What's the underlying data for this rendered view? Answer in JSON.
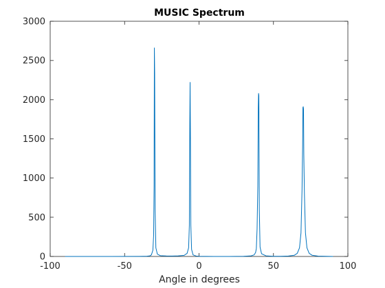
{
  "chart_data": {
    "type": "line",
    "title": "MUSIC Spectrum",
    "xlabel": "Angle in degrees",
    "ylabel": "",
    "xlim": [
      -100,
      100
    ],
    "ylim": [
      0,
      3000
    ],
    "xticks": [
      -100,
      -50,
      0,
      50,
      100
    ],
    "yticks": [
      0,
      500,
      1000,
      1500,
      2000,
      2500,
      3000
    ],
    "grid": false,
    "line_color": "#0072bd",
    "series": [
      {
        "x": [
          -90,
          -60,
          -40,
          -35,
          -33,
          -32,
          -31,
          -30.5,
          -30.2,
          -30,
          -29.8,
          -29.5,
          -29,
          -28,
          -26,
          -22,
          -18,
          -14,
          -10,
          -8,
          -7,
          -6.5,
          -6.2,
          -6,
          -5.8,
          -5.5,
          -5,
          -4,
          -2,
          0,
          10,
          20,
          30,
          35,
          37,
          38,
          38.5,
          39,
          39.5,
          39.8,
          40,
          40.2,
          40.5,
          41,
          42,
          45,
          50,
          55,
          60,
          64,
          66,
          67.5,
          68.5,
          69.2,
          69.6,
          69.8,
          70,
          70.2,
          70.4,
          70.8,
          71.5,
          72.5,
          74,
          76,
          80,
          90
        ],
        "y": [
          0,
          0,
          1,
          3,
          8,
          20,
          80,
          270,
          900,
          2660,
          2330,
          600,
          110,
          30,
          10,
          6,
          5,
          8,
          14,
          40,
          110,
          400,
          1700,
          2220,
          1600,
          400,
          90,
          20,
          6,
          2,
          0,
          0,
          2,
          8,
          20,
          50,
          100,
          350,
          900,
          1900,
          2080,
          2050,
          600,
          120,
          35,
          8,
          2,
          2,
          5,
          15,
          40,
          110,
          300,
          850,
          1400,
          1900,
          1910,
          1880,
          1300,
          800,
          300,
          110,
          40,
          15,
          4,
          0
        ]
      }
    ]
  }
}
